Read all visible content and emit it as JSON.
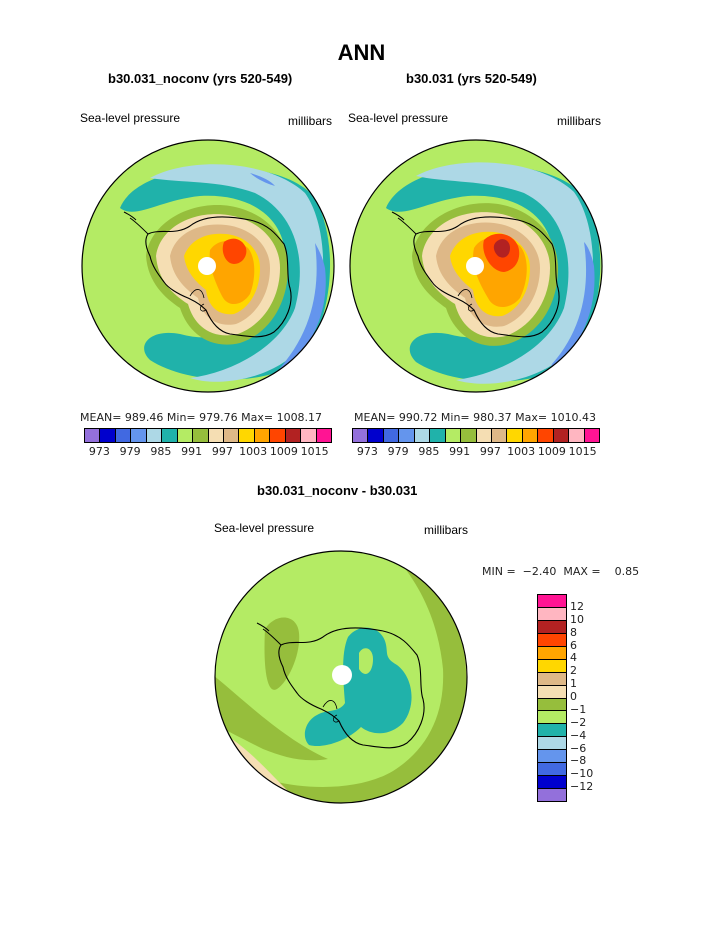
{
  "title": "ANN",
  "panels": [
    {
      "id": "left",
      "case": "b30.031_noconv (yrs 520-549)",
      "variable": "Sea-level pressure",
      "units": "millibars",
      "stats_text": "MEAN= 989.46   Min= 979.76   Max= 1008.17",
      "stats": {
        "mean": 989.46,
        "min": 979.76,
        "max": 1008.17
      }
    },
    {
      "id": "right",
      "case": "b30.031 (yrs 520-549)",
      "variable": "Sea-level pressure",
      "units": "millibars",
      "stats_text": "MEAN= 990.72   Min= 980.37   Max= 1010.43",
      "stats": {
        "mean": 990.72,
        "min": 980.37,
        "max": 1010.43
      }
    }
  ],
  "difference": {
    "case": "b30.031_noconv - b30.031",
    "variable": "Sea-level pressure",
    "units": "millibars",
    "minmax_text": "MIN =  −2.40  MAX =    0.85",
    "min": -2.4,
    "max": 0.85
  },
  "colorbar_abs": {
    "colors": [
      "#9370db",
      "#0000cd",
      "#4169e1",
      "#6495ed",
      "#add8e6",
      "#20b2aa",
      "#b4eb64",
      "#96be3c",
      "#f5deb3",
      "#deb887",
      "#ffd700",
      "#ffa500",
      "#ff4500",
      "#b22222",
      "#ffb6c1",
      "#ff1493"
    ],
    "labels": [
      "973",
      "979",
      "985",
      "991",
      "997",
      "1003",
      "1009",
      "1015"
    ]
  },
  "colorbar_diff": {
    "colors_top_to_bottom": [
      "#ff1493",
      "#ffb6c1",
      "#b22222",
      "#ff4500",
      "#ffa500",
      "#ffd700",
      "#deb887",
      "#f5deb3",
      "#96be3c",
      "#b4eb64",
      "#20b2aa",
      "#add8e6",
      "#6495ed",
      "#4169e1",
      "#0000cd",
      "#9370db"
    ],
    "labels": [
      "12",
      "10",
      "8",
      "6",
      "4",
      "2",
      "1",
      "0",
      "−1",
      "−2",
      "−4",
      "−6",
      "−8",
      "−10",
      "−12"
    ]
  },
  "chart_data": [
    {
      "type": "heatmap",
      "projection": "polar-stereographic (south pole)",
      "title": "b30.031_noconv (yrs 520-549)",
      "field": "Sea-level pressure",
      "units": "millibars",
      "contour_levels": [
        973,
        976,
        979,
        982,
        985,
        988,
        991,
        994,
        997,
        1000,
        1003,
        1006,
        1009,
        1012,
        1015
      ],
      "mean": 989.46,
      "min": 979.76,
      "max": 1008.17
    },
    {
      "type": "heatmap",
      "projection": "polar-stereographic (south pole)",
      "title": "b30.031 (yrs 520-549)",
      "field": "Sea-level pressure",
      "units": "millibars",
      "contour_levels": [
        973,
        976,
        979,
        982,
        985,
        988,
        991,
        994,
        997,
        1000,
        1003,
        1006,
        1009,
        1012,
        1015
      ],
      "mean": 990.72,
      "min": 980.37,
      "max": 1010.43
    },
    {
      "type": "heatmap",
      "projection": "polar-stereographic (south pole)",
      "title": "b30.031_noconv - b30.031",
      "field": "Sea-level pressure difference",
      "units": "millibars",
      "contour_levels": [
        -12,
        -10,
        -8,
        -6,
        -4,
        -2,
        -1,
        0,
        1,
        2,
        4,
        6,
        8,
        10,
        12
      ],
      "min": -2.4,
      "max": 0.85
    }
  ]
}
